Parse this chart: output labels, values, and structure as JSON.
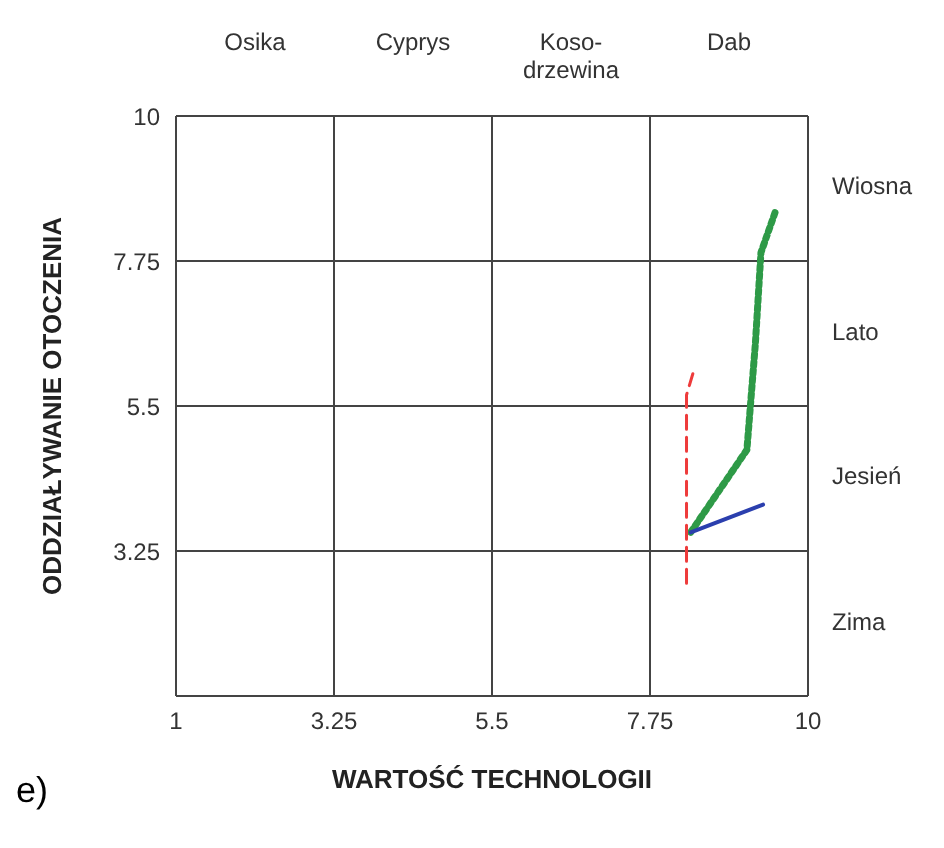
{
  "chart_data": {
    "type": "line",
    "xlabel": "WARTOŚĆ TECHNOLOGII",
    "ylabel": "ODDZIAŁYWANIE OTOCZENIA",
    "annotations": [
      "e)",
      "Osika",
      "Cyprys",
      "Koso-\ndrzewina",
      "Dab",
      "Wiosna",
      "Lato",
      "Jesień",
      "Zima"
    ],
    "xlim": [
      1,
      10
    ],
    "xticks": [
      1,
      3.25,
      5.5,
      7.75,
      10
    ],
    "ylim": [
      1,
      10
    ],
    "yticks": [
      {
        "value": 1,
        "label": null
      },
      3.25,
      5.5,
      7.75,
      10
    ],
    "grid": true,
    "marker": "none",
    "series": [
      {
        "color": "#2e9a47",
        "line_style": "dotted",
        "x": [
          8.33,
          9.13,
          9.25,
          9.33,
          9.53
        ],
        "values": [
          3.54,
          4.82,
          6.46,
          7.88,
          8.5
        ]
      },
      {
        "color": "#ee3b3b",
        "line_style": "dashed",
        "x": [
          8.27,
          8.27,
          8.36
        ],
        "values": [
          2.75,
          5.67,
          6.0
        ]
      },
      {
        "color": "#2b3fae",
        "line_style": "solid",
        "x": [
          8.33,
          9.36
        ],
        "values": [
          3.54,
          3.97
        ]
      }
    ]
  }
}
